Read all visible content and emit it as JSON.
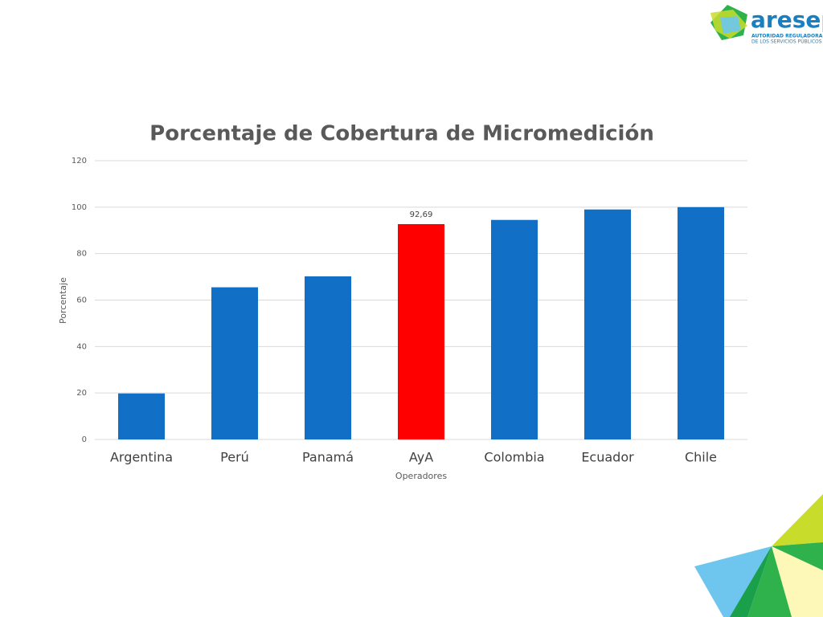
{
  "logo": {
    "name": "aresep",
    "subtitle_lines": [
      "AUTORIDAD REGULADORA",
      "DE LOS SERVICIOS PÚBLICOS"
    ]
  },
  "chart_data": {
    "type": "bar",
    "title": "Porcentaje de Cobertura de Micromedición",
    "x_label": "Operadores",
    "y_label": "Porcentaje",
    "categories": [
      "Argentina",
      "Perú",
      "Panamá",
      "AyA",
      "Colombia",
      "Ecuador",
      "Chile"
    ],
    "values": [
      19.8,
      65.5,
      70.2,
      92.69,
      94.5,
      99,
      100
    ],
    "value_labels": [
      null,
      null,
      null,
      "92,69",
      null,
      null,
      null
    ],
    "colors": [
      "#1170c6",
      "#1170c6",
      "#1170c6",
      "#ff0000",
      "#1170c6",
      "#1170c6",
      "#1170c6"
    ],
    "ylim": [
      0,
      120
    ],
    "yticks": [
      0,
      20,
      40,
      60,
      80,
      100,
      120
    ],
    "grid": true
  }
}
